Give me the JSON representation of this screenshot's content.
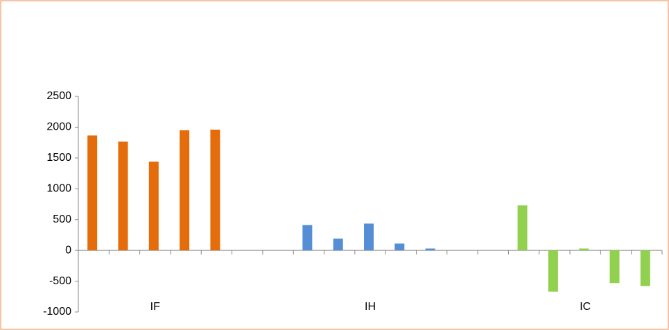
{
  "chart_data": {
    "type": "bar",
    "categories": [
      null,
      null,
      "IF",
      null,
      null,
      null,
      null,
      null,
      null,
      "IH",
      null,
      null,
      null,
      null,
      null,
      null,
      "IC",
      null,
      null
    ],
    "series": [
      {
        "color": "#e46c0a",
        "values": [
          1865,
          1765,
          1440,
          1950,
          1960,
          null,
          null,
          null,
          null,
          null,
          null,
          null,
          null,
          null,
          null,
          null,
          null,
          null,
          null
        ]
      },
      {
        "color": "#558ed5",
        "values": [
          null,
          null,
          null,
          null,
          null,
          null,
          null,
          410,
          190,
          435,
          110,
          30,
          null,
          null,
          null,
          null,
          null,
          null,
          null
        ]
      },
      {
        "color": "#92d050",
        "values": [
          null,
          null,
          null,
          null,
          null,
          null,
          null,
          null,
          null,
          null,
          null,
          null,
          null,
          null,
          730,
          -670,
          30,
          -530,
          -580
        ]
      }
    ],
    "ylim": [
      -1000,
      2500
    ],
    "yticks": [
      -1000,
      -500,
      0,
      500,
      1000,
      1500,
      2000,
      2500
    ]
  }
}
